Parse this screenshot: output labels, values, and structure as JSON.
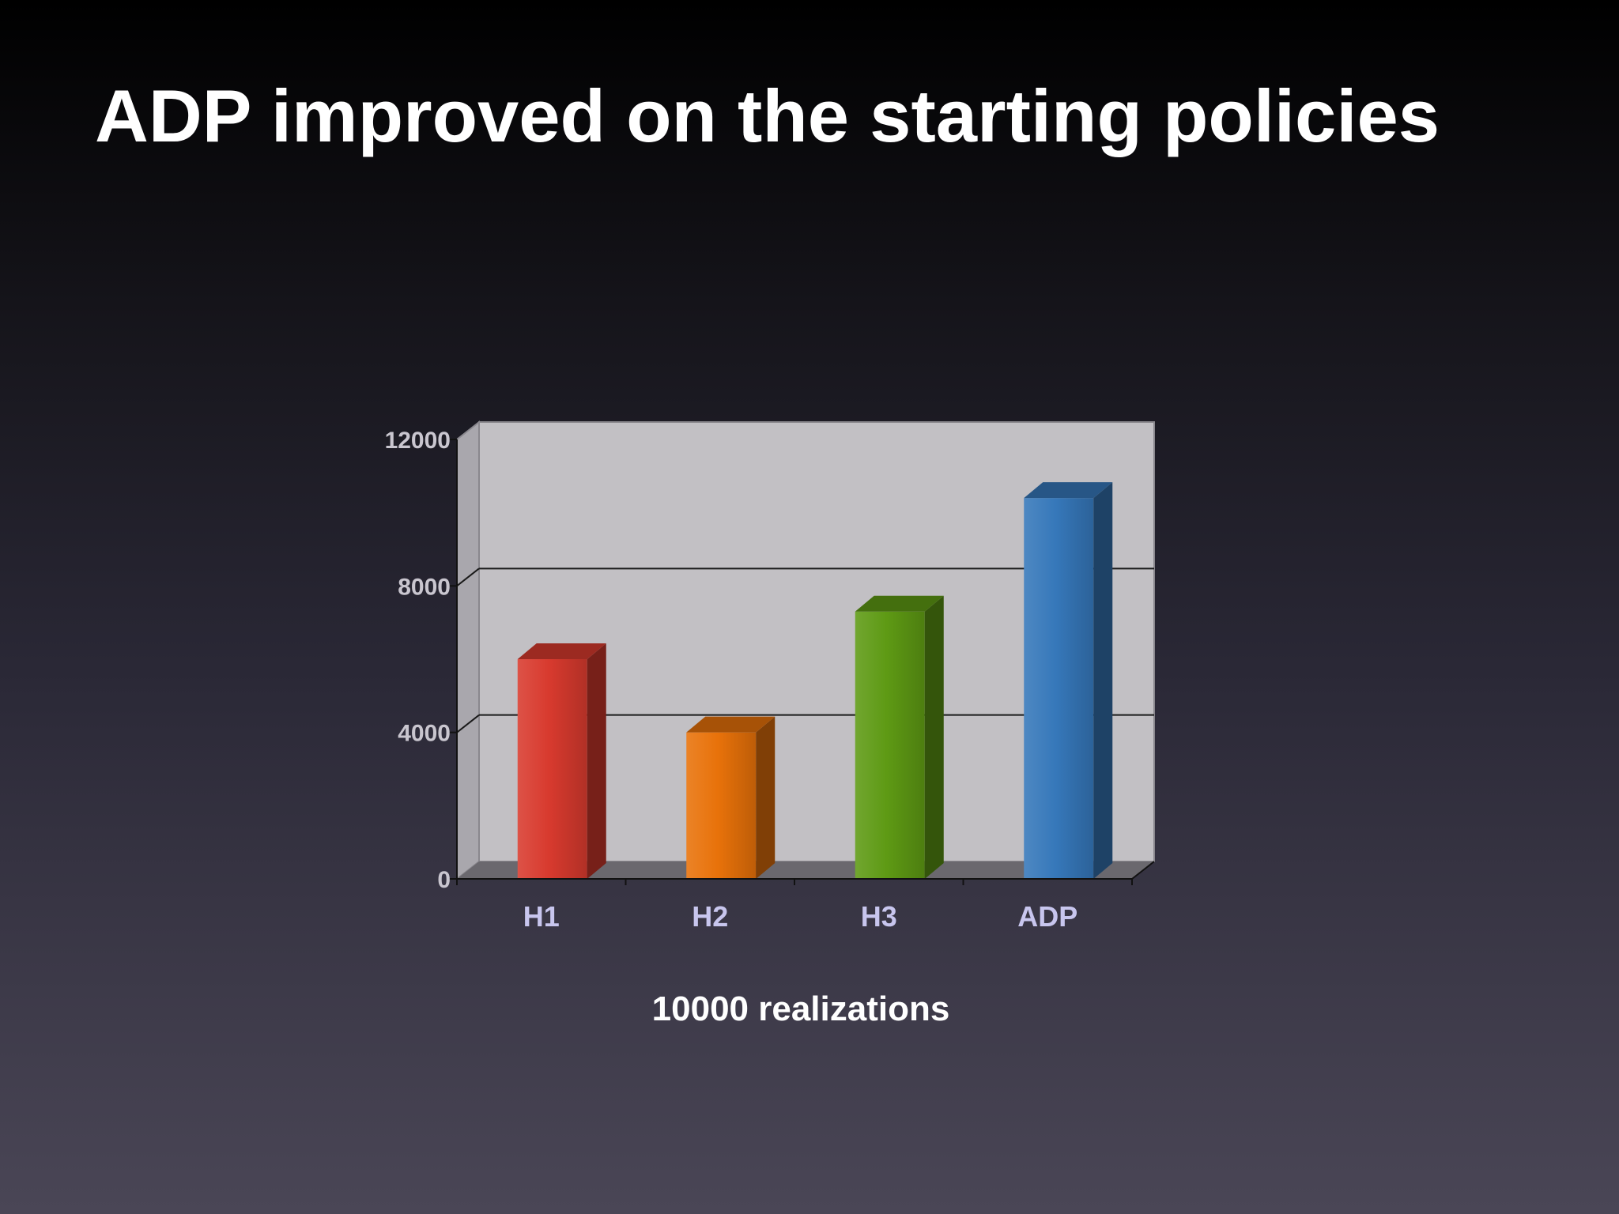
{
  "slide": {
    "title": "ADP improved on the starting policies"
  },
  "chart_data": {
    "type": "bar",
    "title": "ADP improved on the starting policies",
    "xlabel": "10000 realizations",
    "ylabel": "",
    "categories": [
      "H1",
      "H2",
      "H3",
      "ADP"
    ],
    "values": [
      6000,
      4000,
      7300,
      10400
    ],
    "colors": [
      "#d83a2e",
      "#e8720a",
      "#5e9a14",
      "#3678ba"
    ],
    "yticks": [
      0,
      4000,
      8000,
      12000
    ],
    "ylim": [
      0,
      12000
    ],
    "grid": true,
    "legend": "none",
    "style": "3d-column"
  }
}
